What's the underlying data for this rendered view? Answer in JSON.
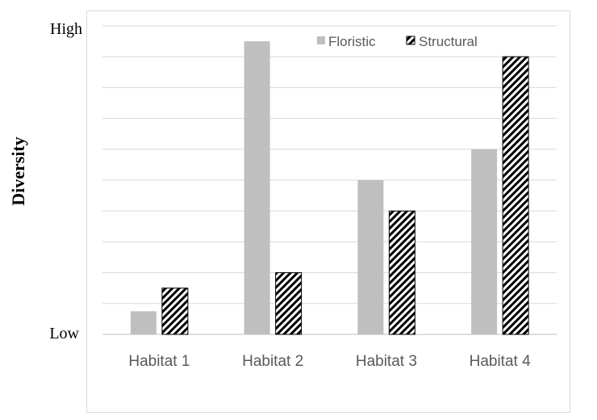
{
  "chart_data": {
    "type": "bar",
    "title": "",
    "ylabel": "Diversity",
    "xlabel": "",
    "y_tick_labels": {
      "low": "Low",
      "high": "High"
    },
    "ylim": [
      0,
      10
    ],
    "grid": true,
    "legend_position": "top-right",
    "categories": [
      "Habitat 1",
      "Habitat 2",
      "Habitat 3",
      "Habitat 4"
    ],
    "series": [
      {
        "name": "Floristic",
        "values": [
          0.75,
          9.5,
          5.0,
          6.0
        ],
        "color": "#bfbfbf",
        "fill": "solid"
      },
      {
        "name": "Structural",
        "values": [
          1.5,
          2.0,
          4.0,
          9.0
        ],
        "color": "#000000",
        "fill": "diagonal-hatch"
      }
    ]
  }
}
